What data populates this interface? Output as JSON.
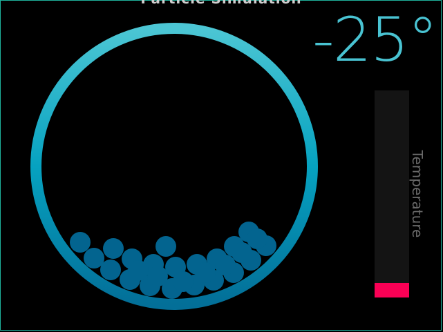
{
  "app": {
    "title": "Particle Simulation"
  },
  "readout": {
    "temperature": "-25°"
  },
  "meter": {
    "label": "Temperature",
    "level": 0.07,
    "track_color": "#141414",
    "fill_color": "#fa0055"
  },
  "colors": {
    "accent": "#49c3d2",
    "ring_top": "#4cc6d4",
    "ring_mid": "#06a2c0",
    "ring_bottom": "#036f98",
    "particle": "#03648f",
    "frame": "#1fb39d"
  },
  "chamber": {
    "particle_count": 27
  }
}
